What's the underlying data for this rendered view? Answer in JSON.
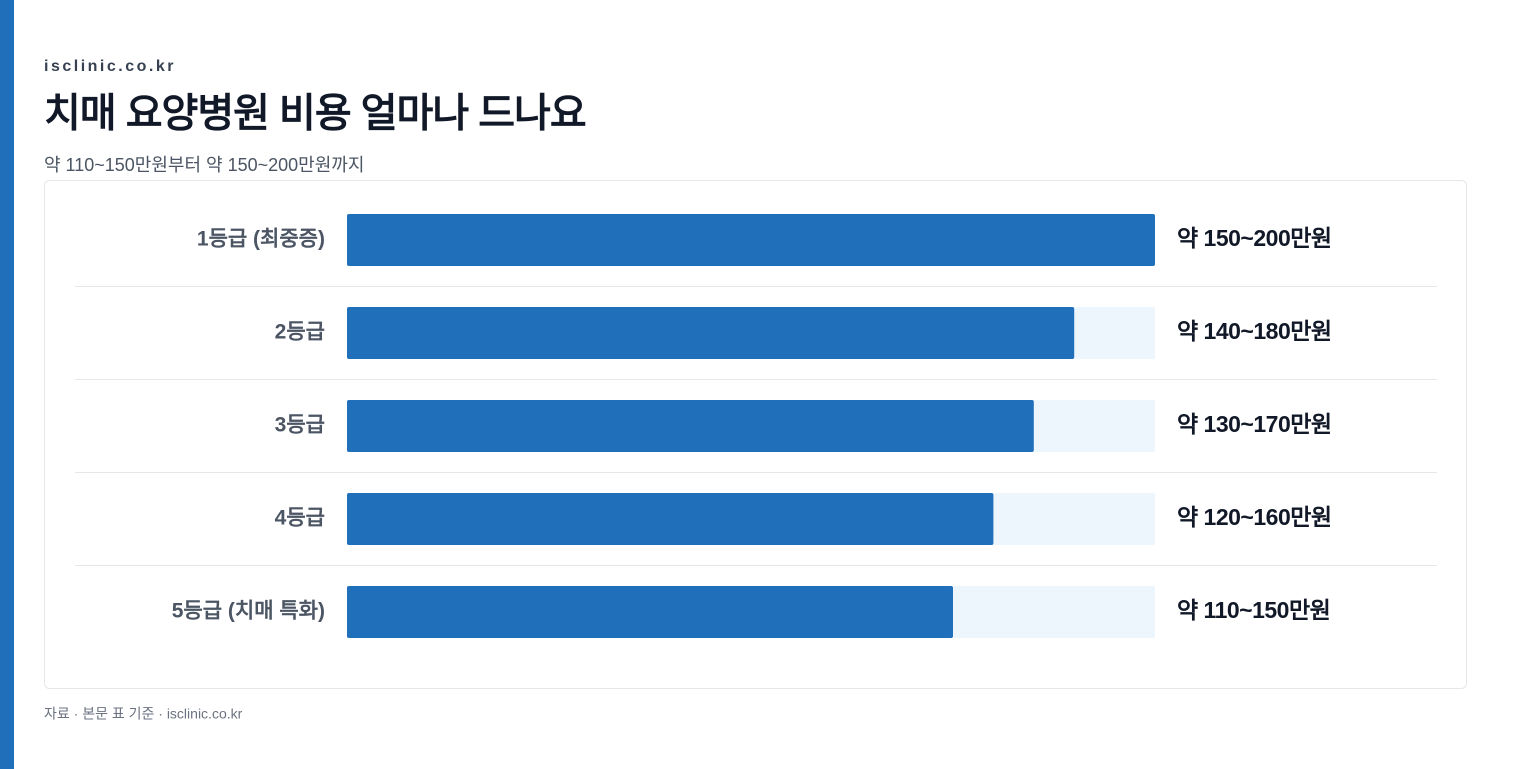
{
  "chart_data": {
    "type": "bar",
    "source": "isclinic.co.kr",
    "title": "치매 요양병원 비용 얼마나 드나요",
    "subtitle": "약 110~150만원부터 약 150~200만원까지",
    "note": "자료 · 본문 표 기준 · isclinic.co.kr",
    "categories": [
      "1등급 (최중증)",
      "2등급",
      "3등급",
      "4등급",
      "5등급 (치매 특화)"
    ],
    "values": [
      200,
      180,
      170,
      160,
      150
    ],
    "value_labels": [
      "약 150~200만원",
      "약 140~180만원",
      "약 130~170만원",
      "약 120~160만원",
      "약 110~150만원"
    ],
    "color": "#1f6fba",
    "track_color": "#edf5fd",
    "xlim": [
      0,
      200
    ]
  }
}
